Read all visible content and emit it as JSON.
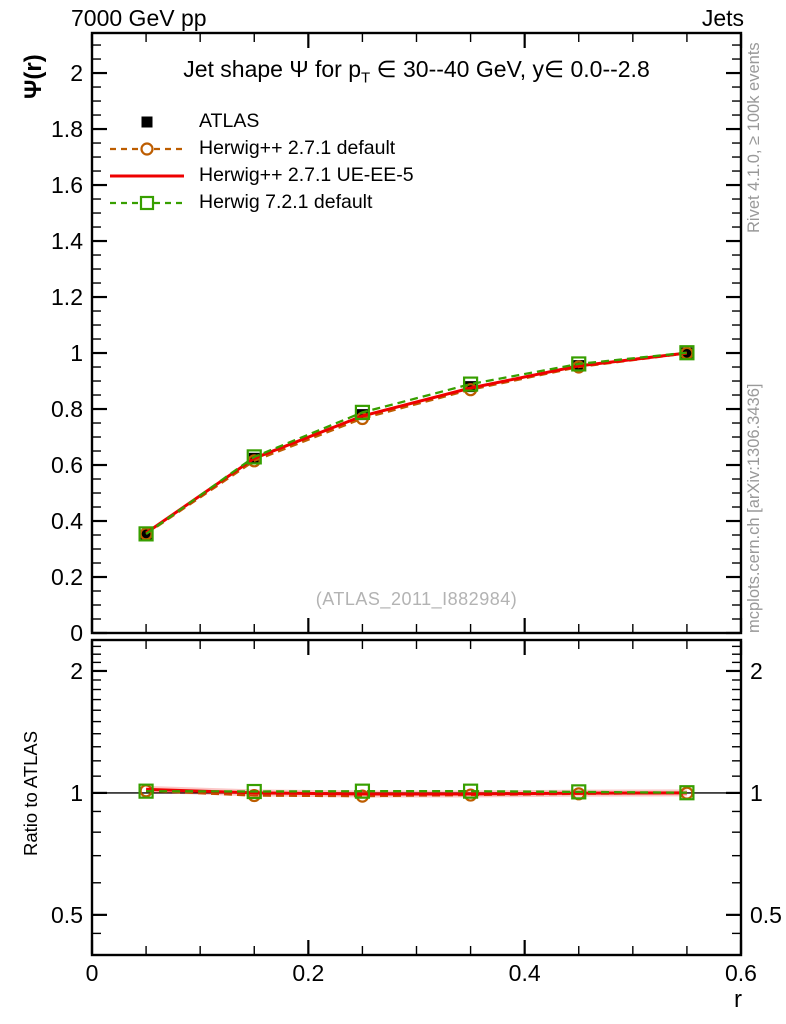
{
  "header": {
    "left": "7000 GeV pp",
    "right": "Jets"
  },
  "title": {
    "pre": "Jet shape Ψ for p",
    "sub": "T",
    "post": " ∈ 30--40 GeV, y∈ 0.0--2.8"
  },
  "watermark": "(ATLAS_2011_I882984)",
  "axis_titles": {
    "main_y": "Ψ(r)",
    "ratio_y": "Ratio to ATLAS",
    "x": "r"
  },
  "side_notes": {
    "top": "Rivet 4.1.0, ≥ 100k events",
    "bottom": "mcplots.cern.ch [arXiv:1306.3436]"
  },
  "colors": {
    "atlas": "#000000",
    "herwigpp_default": "#bd5d00",
    "herwigpp_ueee5": "#ee0000",
    "herwig7_default": "#379f00",
    "frame": "#000000",
    "gray_note": "#999999",
    "watermark_gray": "#b3b3b3"
  },
  "legend": {
    "items": [
      {
        "label": "ATLAS",
        "marker": "filled-square",
        "line": "none",
        "color": "#000000"
      },
      {
        "label": "Herwig++ 2.7.1 default",
        "marker": "open-circle",
        "line": "dashed",
        "color": "#bd5d00"
      },
      {
        "label": "Herwig++ 2.7.1 UE-EE-5",
        "marker": "none",
        "line": "solid",
        "color": "#ee0000"
      },
      {
        "label": "Herwig 7.2.1 default",
        "marker": "open-square",
        "line": "dashed",
        "color": "#379f00"
      }
    ]
  },
  "chart_data": {
    "type": "line",
    "x": [
      0.05,
      0.15,
      0.25,
      0.35,
      0.45,
      0.55
    ],
    "xlim": [
      0,
      0.6
    ],
    "xlabel": "r",
    "xticks": [
      {
        "v": 0,
        "l": "0"
      },
      {
        "v": 0.2,
        "l": "0.2"
      },
      {
        "v": 0.4,
        "l": "0.4"
      },
      {
        "v": 0.6,
        "l": "0.6"
      }
    ],
    "x_minor_step": 0.05,
    "main_panel": {
      "ylabel": "Ψ(r)",
      "ylim": [
        0,
        2.143
      ],
      "grid": false,
      "yticks": [
        {
          "v": 0,
          "l": "0"
        },
        {
          "v": 0.2,
          "l": "0.2"
        },
        {
          "v": 0.4,
          "l": "0.4"
        },
        {
          "v": 0.6,
          "l": "0.6"
        },
        {
          "v": 0.8,
          "l": "0.8"
        },
        {
          "v": 1,
          "l": "1"
        },
        {
          "v": 1.2,
          "l": "1.2"
        },
        {
          "v": 1.4,
          "l": "1.4"
        },
        {
          "v": 1.6,
          "l": "1.6"
        },
        {
          "v": 1.8,
          "l": "1.8"
        },
        {
          "v": 2,
          "l": "2"
        }
      ],
      "y_minor_step": 0.05,
      "series": [
        {
          "name": "ATLAS",
          "color": "#000000",
          "marker": "filled-square",
          "line": "none",
          "values": [
            0.35,
            0.624,
            0.78,
            0.88,
            0.955,
            1.0
          ]
        },
        {
          "name": "Herwig++ 2.7.1 default",
          "color": "#bd5d00",
          "marker": "open-circle",
          "line": "dashed",
          "values": [
            0.354,
            0.615,
            0.766,
            0.869,
            0.95,
            0.999
          ]
        },
        {
          "name": "Herwig++ 2.7.1 UE-EE-5",
          "color": "#ee0000",
          "marker": "none",
          "line": "solid",
          "values": [
            0.357,
            0.624,
            0.775,
            0.875,
            0.954,
            1.0
          ]
        },
        {
          "name": "Herwig 7.2.1 default",
          "color": "#379f00",
          "marker": "open-square",
          "line": "dashed",
          "values": [
            0.354,
            0.629,
            0.788,
            0.889,
            0.961,
            1.001
          ]
        }
      ]
    },
    "ratio_panel": {
      "ylabel": "Ratio to ATLAS",
      "scale": "log",
      "ylim": [
        0.398,
        2.385
      ],
      "baseline": 1,
      "yticks": [
        {
          "v": 0.5,
          "l": "0.5"
        },
        {
          "v": 1,
          "l": "1"
        },
        {
          "v": 2,
          "l": "2"
        }
      ],
      "yticks_minor": [
        0.45,
        0.6,
        0.7,
        0.8,
        0.9,
        1.1,
        1.2,
        1.3,
        1.4,
        1.5,
        1.6,
        1.7,
        1.8,
        1.9,
        2.1,
        2.2,
        2.3
      ],
      "series": [
        {
          "name": "Herwig++ 2.7.1 default",
          "color": "#bd5d00",
          "marker": "open-circle",
          "line": "dashed",
          "values": [
            1.012,
            0.985,
            0.982,
            0.988,
            0.995,
            0.999
          ]
        },
        {
          "name": "Herwig++ 2.7.1 UE-EE-5",
          "color": "#ee0000",
          "marker": "none",
          "line": "solid",
          "values": [
            1.02,
            1.0,
            0.994,
            0.994,
            0.999,
            1.0
          ]
        },
        {
          "name": "Herwig 7.2.1 default",
          "color": "#379f00",
          "marker": "open-square",
          "line": "dashed",
          "values": [
            1.01,
            1.008,
            1.01,
            1.01,
            1.006,
            1.001
          ]
        }
      ]
    }
  }
}
